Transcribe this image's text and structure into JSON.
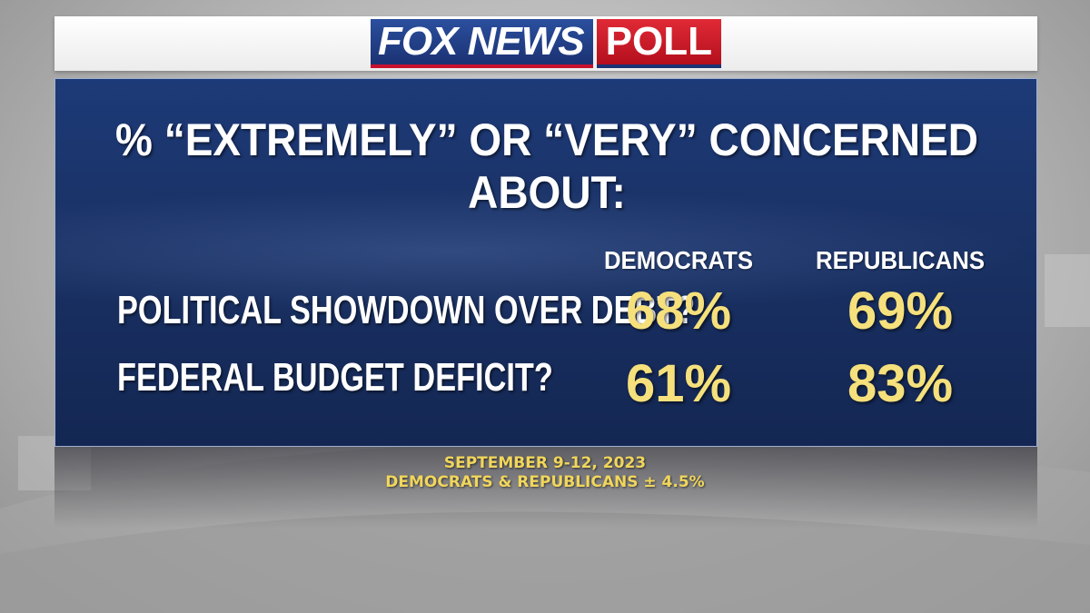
{
  "logo": {
    "fox_news": "FOX NEWS",
    "poll": "POLL"
  },
  "title": "% “EXTREMELY” OR “VERY” CONCERNED ABOUT:",
  "columns": [
    "DEMOCRATS",
    "REPUBLICANS"
  ],
  "rows": [
    {
      "label": "POLITICAL SHOWDOWN OVER DEBT?",
      "values": [
        "68%",
        "69%"
      ]
    },
    {
      "label": "FEDERAL BUDGET DEFICIT?",
      "values": [
        "61%",
        "83%"
      ]
    }
  ],
  "footer": {
    "date": "SEPTEMBER 9-12, 2023",
    "margin": "DEMOCRATS & REPUBLICANS ± 4.5%"
  },
  "colors": {
    "panel_blue": "#1a3266",
    "value_yellow": "#f5e07c",
    "footer_yellow": "#f1d65c",
    "logo_blue": "#1b3273",
    "logo_red": "#c8102e"
  }
}
